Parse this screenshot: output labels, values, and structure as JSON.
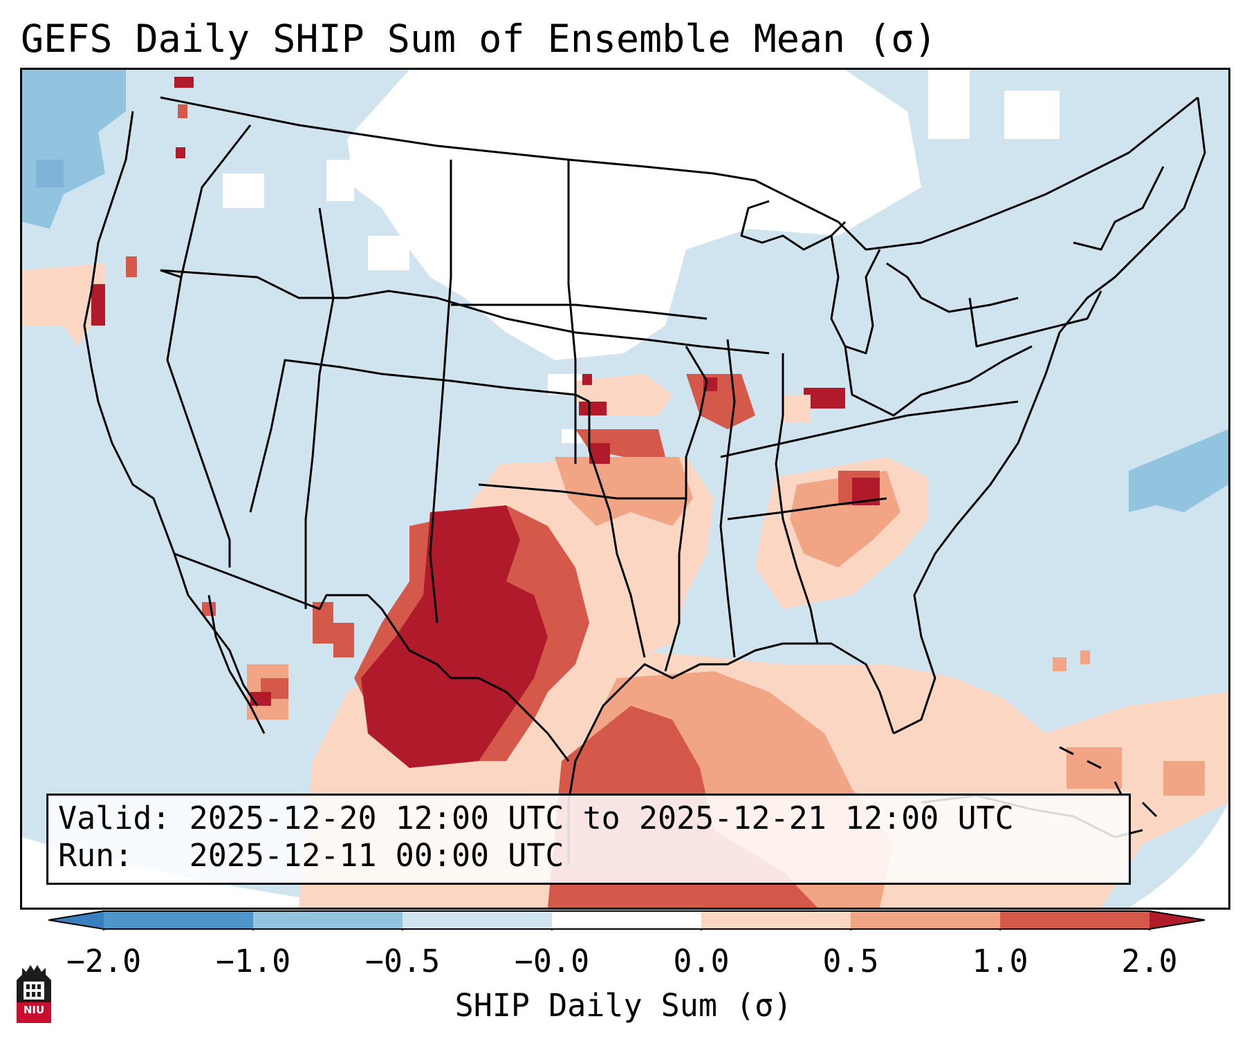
{
  "title": "GEFS Daily SHIP Sum of Ensemble Mean (σ)",
  "info": {
    "valid_label": "Valid:",
    "valid_value": "2025-12-20 12:00 UTC to 2025-12-21 12:00 UTC",
    "run_label": "Run:",
    "run_value": "2025-12-11 00:00 UTC"
  },
  "colorbar": {
    "label": "SHIP Daily Sum (σ)",
    "ticks": [
      "−2.0",
      "−1.0",
      "−0.5",
      "−0.0",
      "0.0",
      "0.5",
      "1.0",
      "2.0"
    ],
    "bins": [
      {
        "range": "< -2.0",
        "color": "#3a7fc0"
      },
      {
        "range": "-2.0 to -1.0",
        "color": "#4d96cc"
      },
      {
        "range": "-1.0 to -0.5",
        "color": "#93c4df"
      },
      {
        "range": "-0.5 to -0.0",
        "color": "#d0e4f0"
      },
      {
        "range": "-0.0 to 0.0",
        "color": "#ffffff"
      },
      {
        "range": "0.0 to 0.5",
        "color": "#fbd7c3"
      },
      {
        "range": "0.5 to 1.0",
        "color": "#f1a585"
      },
      {
        "range": "1.0 to 2.0",
        "color": "#d4594b"
      },
      {
        "range": "> 2.0",
        "color": "#b01a2b"
      }
    ]
  },
  "logo": {
    "text": "NIU"
  },
  "map": {
    "domain": "Continental United States, southern Canada, northern Mexico, Gulf of Mexico",
    "field": "SHIP daily sum standardized anomaly",
    "regions": [
      {
        "area": "Texas / Southern Plains",
        "category": "> 2.0"
      },
      {
        "area": "Oklahoma / Arkansas / Missouri",
        "category": "1.0 to 2.0"
      },
      {
        "area": "Gulf of Mexico",
        "category": "0.5 to 2.0"
      },
      {
        "area": "Georgia / South Carolina",
        "category": "0.5 to 2.0"
      },
      {
        "area": "Northern Plains / Upper Midwest",
        "category": "-0.0 to 0.0"
      },
      {
        "area": "Pacific Northwest offshore",
        "category": "-1.0 to -0.5"
      }
    ]
  }
}
